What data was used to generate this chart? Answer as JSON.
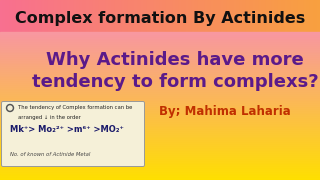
{
  "title": "Complex formation By Actinides",
  "subtitle_line1": "Why Actinides have more",
  "subtitle_line2": "tendency to form complexs?",
  "author": "By; Mahima Laharia",
  "title_color": "#111111",
  "subtitle_color": "#5B1A8A",
  "author_color": "#C03000",
  "note_text_line1": "The tendency of Complex formation can be",
  "note_text_line2": "arranged ↓ in the order",
  "note_text_line3": "Mk⁺> Mo₂²⁺ >m⁶⁺ >MO₂⁺",
  "note_text_line4": "No. of known of Actinide Metal",
  "figwidth": 3.2,
  "figheight": 1.8,
  "dpi": 100
}
